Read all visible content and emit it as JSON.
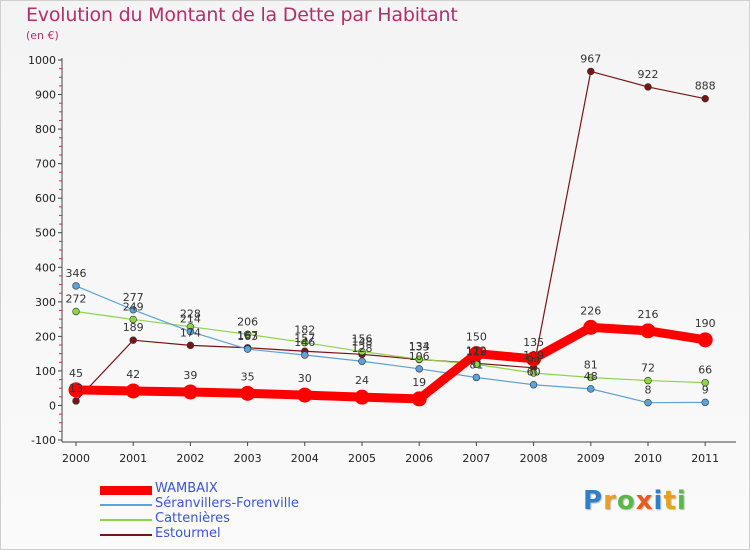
{
  "chart_data": {
    "type": "line",
    "title": "Evolution du Montant de la Dette par Habitant",
    "unit_label": "(en €)",
    "x": [
      "2000",
      "2001",
      "2002",
      "2003",
      "2004",
      "2005",
      "2006",
      "2007",
      "2008",
      "2009",
      "2010",
      "2011"
    ],
    "ylim": [
      -100,
      1000
    ],
    "yticks": [
      "-100",
      "0",
      "100",
      "200",
      "300",
      "400",
      "500",
      "600",
      "700",
      "800",
      "900",
      "1000"
    ],
    "grid": false,
    "legend_position": "bottom-left",
    "series": [
      {
        "name": "WAMBAIX",
        "color": "#ff0000",
        "values": [
          45,
          42,
          39,
          35,
          30,
          24,
          19,
          150,
          135,
          226,
          216,
          190
        ],
        "labels": [
          "45",
          "42",
          "39",
          "35",
          "30",
          "24",
          "19",
          "150",
          "135",
          "226",
          "216",
          "190"
        ]
      },
      {
        "name": "Séranvillers-Forenville",
        "color": "#5ba3d8",
        "values": [
          346,
          277,
          214,
          163,
          146,
          128,
          106,
          81,
          60,
          48,
          8,
          9
        ],
        "labels": [
          "346",
          "277",
          "214",
          "163",
          "146",
          "128",
          "106",
          "81",
          "60",
          "48",
          "8",
          "9"
        ]
      },
      {
        "name": "Cattenières",
        "color": "#8ed44a",
        "values": [
          272,
          249,
          228,
          206,
          182,
          156,
          134,
          119,
          94,
          81,
          72,
          66
        ],
        "labels": [
          "272",
          "249",
          "228",
          "206",
          "182",
          "156",
          "134",
          "119",
          "94",
          "81",
          "72",
          "66"
        ]
      },
      {
        "name": "Estourmel",
        "color": "#7a1515",
        "values": [
          13,
          189,
          174,
          167,
          157,
          148,
          133,
          122,
          109,
          967,
          922,
          888
        ],
        "labels": [
          "13",
          "189",
          "174",
          "167",
          "157",
          "148",
          "133",
          "122",
          "109",
          "967",
          "922",
          "888"
        ]
      }
    ]
  },
  "brand": {
    "letters": [
      "P",
      "r",
      "o",
      "x",
      "i",
      "t",
      "i"
    ],
    "colors": [
      "#2f7fc9",
      "#e8a020",
      "#59b947",
      "#e85a20",
      "#2f7fc9",
      "#e8a020",
      "#59b947"
    ]
  }
}
